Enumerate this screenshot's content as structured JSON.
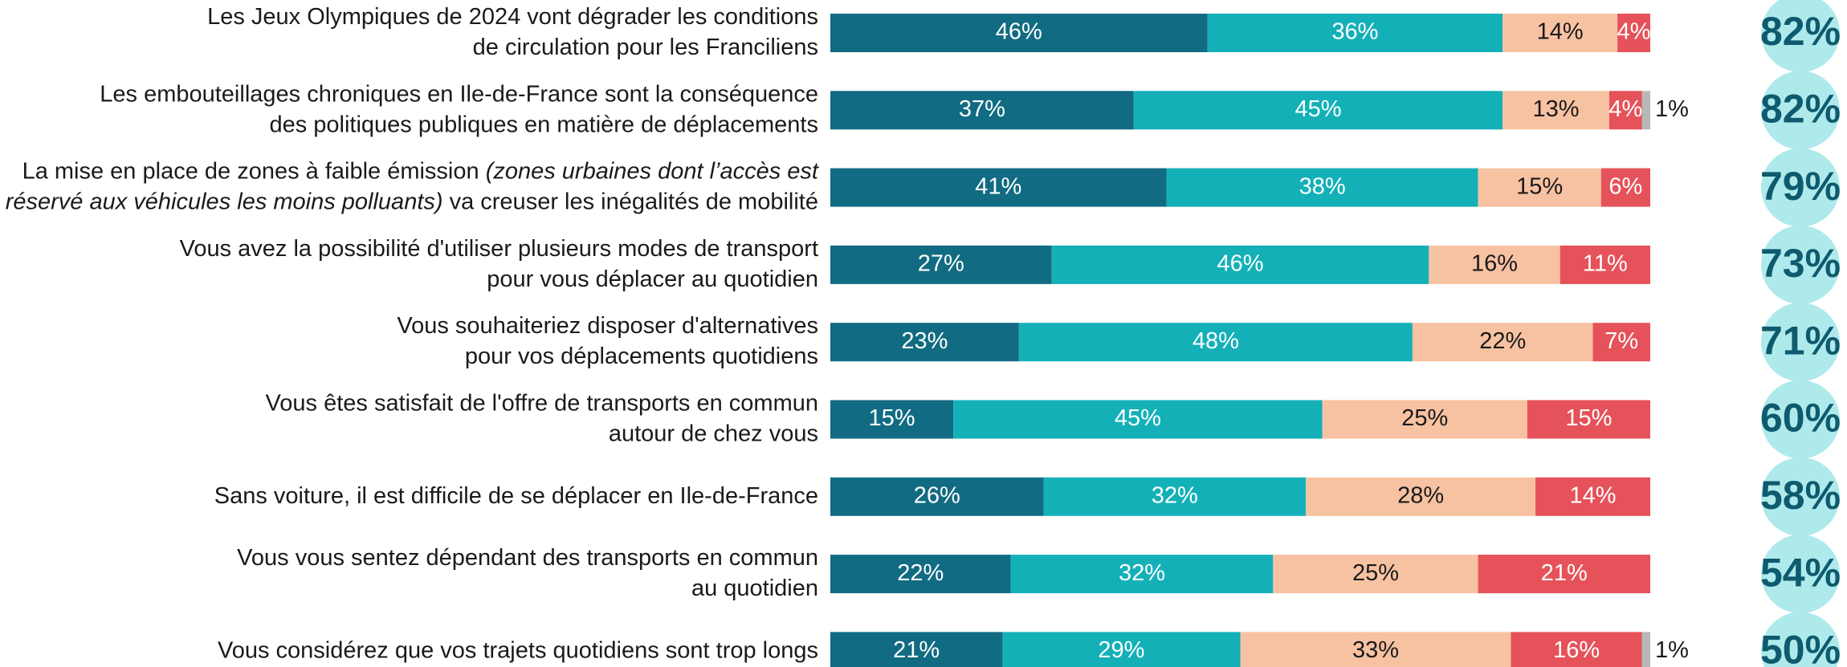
{
  "chart_data": {
    "type": "stacked-bar-horizontal",
    "xlim": [
      0,
      100
    ],
    "categories": [
      [
        [
          "Les Jeux Olympiques de 2024 vont dégrader les conditions"
        ],
        [
          "de circulation pour les Franciliens"
        ]
      ],
      [
        [
          "Les embouteillages chroniques en Ile-de-France sont la conséquence"
        ],
        [
          "des politiques publiques en matière de déplacements"
        ]
      ],
      [
        [
          "La mise en place de zones à faible émission ",
          {
            "text": "(zones urbaines dont l’accès est",
            "italic": true
          }
        ],
        [
          {
            "text": "réservé aux véhicules les moins polluants)",
            "italic": true
          },
          " va creuser les inégalités de mobilité"
        ]
      ],
      [
        [
          "Vous avez la possibilité d'utiliser plusieurs modes de transport"
        ],
        [
          "pour vous déplacer au quotidien"
        ]
      ],
      [
        [
          "Vous souhaiteriez disposer d'alternatives"
        ],
        [
          "pour vos déplacements quotidiens"
        ]
      ],
      [
        [
          "Vous êtes satisfait de l'offre de transports en commun"
        ],
        [
          "autour de chez vous"
        ]
      ],
      [
        [
          "Sans voiture, il est difficile de se déplacer en Ile-de-France"
        ]
      ],
      [
        [
          "Vous vous sentez dépendant des transports en commun"
        ],
        [
          "au quotidien"
        ]
      ],
      [
        [
          "Vous considérez que vos trajets quotidiens sont trop longs"
        ]
      ]
    ],
    "series": [
      {
        "color": "#116b82",
        "text_color": "#ffffff",
        "values": [
          46,
          37,
          41,
          27,
          23,
          15,
          26,
          22,
          21
        ],
        "value_labels": [
          "46%",
          "37%",
          "41%",
          "27%",
          "23%",
          "15%",
          "26%",
          "22%",
          "21%"
        ]
      },
      {
        "color": "#14b0b8",
        "text_color": "#ffffff",
        "values": [
          36,
          45,
          38,
          46,
          48,
          45,
          32,
          32,
          29
        ],
        "value_labels": [
          "36%",
          "45%",
          "38%",
          "46%",
          "48%",
          "45%",
          "32%",
          "32%",
          "29%"
        ]
      },
      {
        "color": "#f7c2a2",
        "text_color": "#1a1a1a",
        "values": [
          14,
          13,
          15,
          16,
          22,
          25,
          28,
          25,
          33
        ],
        "value_labels": [
          "14%",
          "13%",
          "15%",
          "16%",
          "22%",
          "25%",
          "28%",
          "25%",
          "33%"
        ]
      },
      {
        "color": "#e5525a",
        "text_color": "#ffffff",
        "values": [
          4,
          4,
          6,
          11,
          7,
          15,
          14,
          21,
          16
        ],
        "value_labels": [
          "4%",
          "4%",
          "6%",
          "11%",
          "7%",
          "15%",
          "14%",
          "21%",
          "16%"
        ]
      },
      {
        "color": "#b8b8b8",
        "text_color": "#1a1a1a",
        "label_outside": true,
        "values": [
          null,
          1,
          null,
          null,
          null,
          null,
          null,
          null,
          1
        ],
        "value_labels": [
          null,
          "1%",
          null,
          null,
          null,
          null,
          null,
          null,
          "1%"
        ]
      }
    ],
    "totals": {
      "color": "#aeeaec",
      "values": [
        82,
        82,
        79,
        73,
        71,
        60,
        58,
        54,
        50
      ],
      "value_labels": [
        "82%",
        "82%",
        "79%",
        "73%",
        "71%",
        "60%",
        "58%",
        "54%",
        "50%"
      ]
    }
  }
}
